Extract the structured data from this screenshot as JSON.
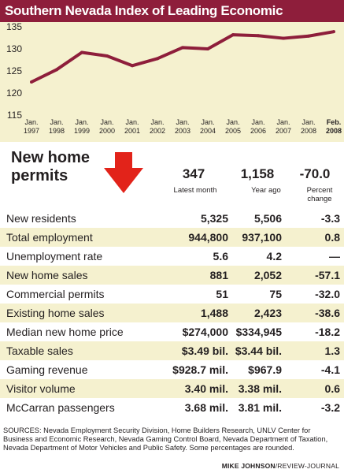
{
  "title": "Southern Nevada Index of Leading Economic Indicators",
  "colors": {
    "accent": "#8e1e3b",
    "panel": "#f5f1cf",
    "arrow": "#e2231a"
  },
  "chart_data": {
    "type": "line",
    "x": [
      "Jan. 1997",
      "Jan. 1998",
      "Jan. 1999",
      "Jan. 2000",
      "Jan. 2001",
      "Jan. 2002",
      "Jan. 2003",
      "Jan. 2004",
      "Jan. 2005",
      "Jan. 2006",
      "Jan. 2007",
      "Jan. 2008",
      "Feb. 2008"
    ],
    "x_ticks": [
      {
        "top": "Jan.",
        "bottom": "1997"
      },
      {
        "top": "Jan.",
        "bottom": "1998"
      },
      {
        "top": "Jan.",
        "bottom": "1999"
      },
      {
        "top": "Jan.",
        "bottom": "2000"
      },
      {
        "top": "Jan.",
        "bottom": "2001"
      },
      {
        "top": "Jan.",
        "bottom": "2002"
      },
      {
        "top": "Jan.",
        "bottom": "2003"
      },
      {
        "top": "Jan.",
        "bottom": "2004"
      },
      {
        "top": "Jan.",
        "bottom": "2005"
      },
      {
        "top": "Jan.",
        "bottom": "2006"
      },
      {
        "top": "Jan.",
        "bottom": "2007"
      },
      {
        "top": "Jan.",
        "bottom": "2008"
      },
      {
        "top": "Feb.",
        "bottom": "2008"
      }
    ],
    "values": [
      122.5,
      125.3,
      129.2,
      128.4,
      126.2,
      127.8,
      130.3,
      130.0,
      133.2,
      133.0,
      132.4,
      132.9,
      133.9
    ],
    "ylim": [
      115,
      135
    ],
    "yticks": [
      115,
      120,
      125,
      130,
      135
    ],
    "grid": false,
    "line_color": "#8e1e3b"
  },
  "permits": {
    "title": "New home permits",
    "latest": "347",
    "year_ago": "1,158",
    "pct": "-70.0",
    "latest_sub": "Latest month",
    "year_ago_sub": "Year ago",
    "pct_sub": "Percent change"
  },
  "rows": [
    {
      "label": "New residents",
      "latest": "5,325",
      "year_ago": "5,506",
      "pct": "-3.3"
    },
    {
      "label": "Total employment",
      "latest": "944,800",
      "year_ago": "937,100",
      "pct": "0.8"
    },
    {
      "label": "Unemployment rate",
      "latest": "5.6",
      "year_ago": "4.2",
      "pct": "—"
    },
    {
      "label": "New home sales",
      "latest": "881",
      "year_ago": "2,052",
      "pct": "-57.1"
    },
    {
      "label": "Commercial permits",
      "latest": "51",
      "year_ago": "75",
      "pct": "-32.0"
    },
    {
      "label": "Existing home sales",
      "latest": "1,488",
      "year_ago": "2,423",
      "pct": "-38.6"
    },
    {
      "label": "Median new home price",
      "latest": "$274,000",
      "year_ago": "$334,945",
      "pct": "-18.2"
    },
    {
      "label": "Taxable sales",
      "latest": "$3.49 bil.",
      "year_ago": "$3.44 bil.",
      "pct": "1.3"
    },
    {
      "label": "Gaming revenue",
      "latest": "$928.7 mil.",
      "year_ago": "$967.9 mil.",
      "pct": "-4.1"
    },
    {
      "label": "Visitor volume",
      "latest": "3.40 mil.",
      "year_ago": "3.38 mil.",
      "pct": "0.6"
    },
    {
      "label": "McCarran passengers",
      "latest": "3.68 mil.",
      "year_ago": "3.81 mil.",
      "pct": "-3.2"
    }
  ],
  "sources": "SOURCES: Nevada Employment Security Division, Home Builders Research, UNLV Center for Business and Economic Research, Nevada Gaming Control Board, Nevada Department of Taxation, Nevada Department of Motor Vehicles and Public Safety. Some percentages are rounded.",
  "credit": {
    "name": "MIKE JOHNSON",
    "outlet": "/REVIEW-JOURNAL"
  }
}
